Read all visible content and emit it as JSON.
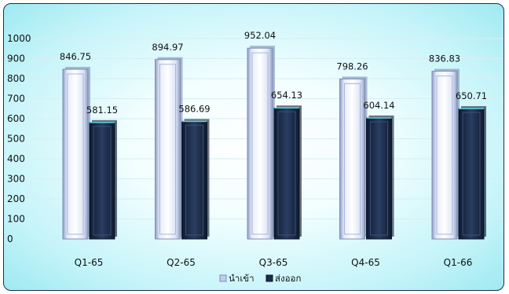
{
  "chart_data": {
    "type": "bar",
    "title": "",
    "xlabel": "",
    "ylabel": "",
    "categories": [
      "Q1-65",
      "Q2-65",
      "Q3-65",
      "Q4-65",
      "Q1-66"
    ],
    "series": [
      {
        "name": "นำเข้า",
        "values": [
          846.75,
          894.97,
          952.04,
          798.26,
          836.83
        ]
      },
      {
        "name": "ส่งออก",
        "values": [
          581.15,
          586.69,
          654.13,
          604.14,
          650.71
        ]
      }
    ],
    "ylim": [
      0,
      1000
    ],
    "yticks": [
      0,
      100,
      200,
      300,
      400,
      500,
      600,
      700,
      800,
      900,
      1000
    ],
    "grid": true,
    "legend": "bottom",
    "colors": {
      "import": "#c8d4ee",
      "export": "#1c2e4c",
      "background": "#bdf2f8"
    }
  }
}
